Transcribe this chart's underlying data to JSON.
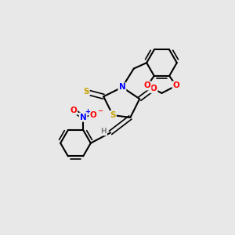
{
  "background_color": "#e8e8e8",
  "atom_colors": {
    "C": "#000000",
    "N": "#0000ff",
    "O": "#ff0000",
    "S": "#c8a000",
    "H": "#808080"
  },
  "bond_color": "#000000",
  "figsize": [
    3.0,
    3.0
  ],
  "dpi": 100
}
